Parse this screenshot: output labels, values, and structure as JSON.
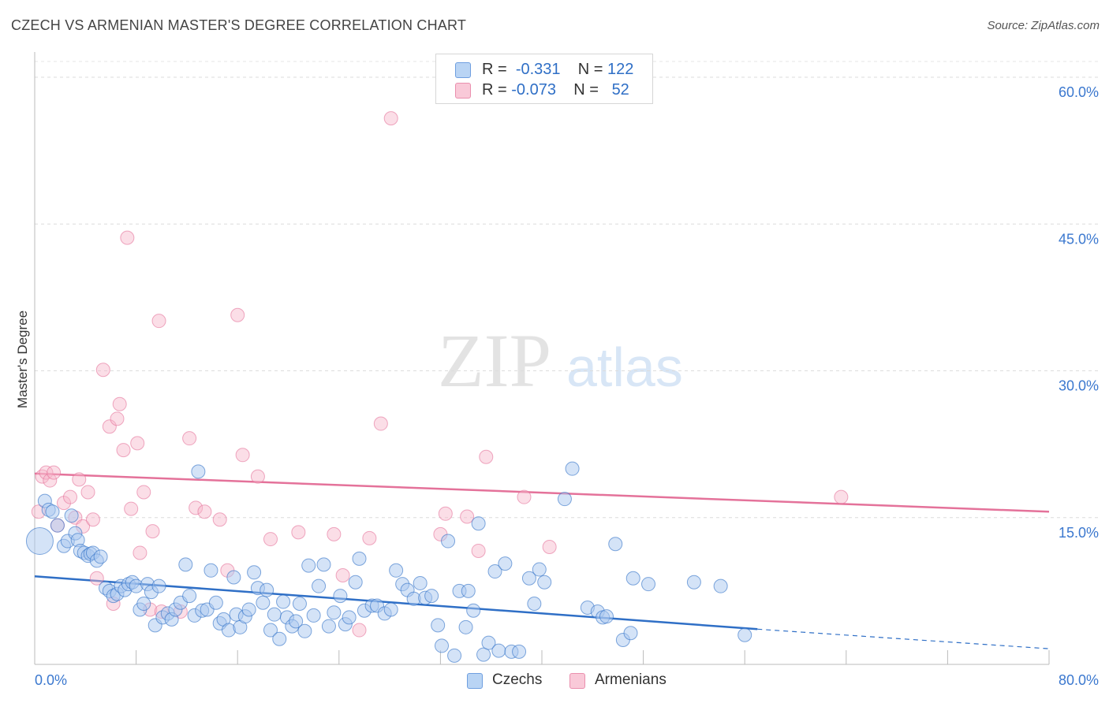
{
  "header": {
    "title": "CZECH VS ARMENIAN MASTER'S DEGREE CORRELATION CHART",
    "source": "Source: ZipAtlas.com"
  },
  "watermark": {
    "zip": "ZIP",
    "atlas": "atlas"
  },
  "legend": {
    "rows": [
      {
        "r_label": "R =",
        "r_value": "-0.331",
        "n_label": "N =",
        "n_value": "122",
        "color": "#a9c8f0"
      },
      {
        "r_label": "R =",
        "r_value": "-0.073",
        "n_label": "N =",
        "n_value": "52",
        "color": "#f6b6ca"
      }
    ]
  },
  "bottom_legend": [
    {
      "label": "Czechs",
      "color": "#a9c8f0"
    },
    {
      "label": "Armenians",
      "color": "#f6b6ca"
    }
  ],
  "chart_data": {
    "type": "scatter",
    "ylabel": "Master's Degree",
    "xlabel": "",
    "xlim": [
      0,
      80
    ],
    "ylim": [
      0,
      60
    ],
    "x_tick_labels": [
      "0.0%",
      "80.0%"
    ],
    "y_tick_labels": [
      "15.0%",
      "30.0%",
      "45.0%",
      "60.0%"
    ],
    "y_ticks": [
      15,
      30,
      45,
      60
    ],
    "grid": true,
    "colors": {
      "czechs": "#2f6fc6",
      "czechs_fill": "#a9c8f0",
      "armenians": "#e4729a",
      "armenians_fill": "#f6b6ca",
      "tick_text": "#3b78cf"
    },
    "series": [
      {
        "name": "Czechs",
        "trend": {
          "x0": 0,
          "y0": 9.0,
          "x1": 57,
          "y1": 3.6,
          "dash_to_x": 80,
          "dash_to_y": 1.6
        },
        "points": [
          [
            0.4,
            12.6
          ],
          [
            0.8,
            16.7
          ],
          [
            1.1,
            15.8
          ],
          [
            1.4,
            15.6
          ],
          [
            1.8,
            14.2
          ],
          [
            2.3,
            12.1
          ],
          [
            2.6,
            12.6
          ],
          [
            2.9,
            15.2
          ],
          [
            3.2,
            13.4
          ],
          [
            3.4,
            12.7
          ],
          [
            3.6,
            11.6
          ],
          [
            3.9,
            11.4
          ],
          [
            4.2,
            11.1
          ],
          [
            4.4,
            11.3
          ],
          [
            4.6,
            11.4
          ],
          [
            4.9,
            10.6
          ],
          [
            5.2,
            11.0
          ],
          [
            5.6,
            7.8
          ],
          [
            5.9,
            7.5
          ],
          [
            6.2,
            7.0
          ],
          [
            6.5,
            7.2
          ],
          [
            6.8,
            8.0
          ],
          [
            7.1,
            7.6
          ],
          [
            7.4,
            8.2
          ],
          [
            7.7,
            8.4
          ],
          [
            8.0,
            8.0
          ],
          [
            8.3,
            5.6
          ],
          [
            8.6,
            6.2
          ],
          [
            8.9,
            8.2
          ],
          [
            9.2,
            7.4
          ],
          [
            9.5,
            4.0
          ],
          [
            9.8,
            8.0
          ],
          [
            10.1,
            4.8
          ],
          [
            10.5,
            5.2
          ],
          [
            10.8,
            4.6
          ],
          [
            11.1,
            5.6
          ],
          [
            11.5,
            6.3
          ],
          [
            11.9,
            10.2
          ],
          [
            12.2,
            7.0
          ],
          [
            12.6,
            5.0
          ],
          [
            12.9,
            19.7
          ],
          [
            13.2,
            5.5
          ],
          [
            13.6,
            5.6
          ],
          [
            13.9,
            9.6
          ],
          [
            14.3,
            6.3
          ],
          [
            14.6,
            4.2
          ],
          [
            14.9,
            4.6
          ],
          [
            15.3,
            3.5
          ],
          [
            15.7,
            8.9
          ],
          [
            15.9,
            5.1
          ],
          [
            16.2,
            3.8
          ],
          [
            16.6,
            4.9
          ],
          [
            16.9,
            5.6
          ],
          [
            17.3,
            9.4
          ],
          [
            17.6,
            7.8
          ],
          [
            18.0,
            6.3
          ],
          [
            18.3,
            7.6
          ],
          [
            18.6,
            3.5
          ],
          [
            18.9,
            5.1
          ],
          [
            19.3,
            2.6
          ],
          [
            19.6,
            6.4
          ],
          [
            19.9,
            4.8
          ],
          [
            20.3,
            3.9
          ],
          [
            20.6,
            4.4
          ],
          [
            20.9,
            6.2
          ],
          [
            21.3,
            3.4
          ],
          [
            21.6,
            10.1
          ],
          [
            22.0,
            5.0
          ],
          [
            22.4,
            8.0
          ],
          [
            22.8,
            10.2
          ],
          [
            23.2,
            3.9
          ],
          [
            23.6,
            5.3
          ],
          [
            24.1,
            7.0
          ],
          [
            24.5,
            4.1
          ],
          [
            24.8,
            4.8
          ],
          [
            25.3,
            8.4
          ],
          [
            25.6,
            10.8
          ],
          [
            26.0,
            5.5
          ],
          [
            26.6,
            6.0
          ],
          [
            27.0,
            6.0
          ],
          [
            27.6,
            5.2
          ],
          [
            28.1,
            5.6
          ],
          [
            28.5,
            9.6
          ],
          [
            29.0,
            8.2
          ],
          [
            29.4,
            7.6
          ],
          [
            29.9,
            6.7
          ],
          [
            30.4,
            8.3
          ],
          [
            30.8,
            6.8
          ],
          [
            31.3,
            7.0
          ],
          [
            31.8,
            4.0
          ],
          [
            32.1,
            1.9
          ],
          [
            32.6,
            12.6
          ],
          [
            33.1,
            0.9
          ],
          [
            33.5,
            7.5
          ],
          [
            34.0,
            3.8
          ],
          [
            34.2,
            7.5
          ],
          [
            34.6,
            5.5
          ],
          [
            35.0,
            14.4
          ],
          [
            35.4,
            1.0
          ],
          [
            35.8,
            2.2
          ],
          [
            36.3,
            9.5
          ],
          [
            36.6,
            1.4
          ],
          [
            37.1,
            10.3
          ],
          [
            37.6,
            1.3
          ],
          [
            38.2,
            1.3
          ],
          [
            39.0,
            8.8
          ],
          [
            39.4,
            6.2
          ],
          [
            39.8,
            9.7
          ],
          [
            40.2,
            8.4
          ],
          [
            41.8,
            16.9
          ],
          [
            42.4,
            20.0
          ],
          [
            43.6,
            5.8
          ],
          [
            44.4,
            5.4
          ],
          [
            44.8,
            4.8
          ],
          [
            45.1,
            4.9
          ],
          [
            45.8,
            12.3
          ],
          [
            46.4,
            2.5
          ],
          [
            47.0,
            3.2
          ],
          [
            47.2,
            8.8
          ],
          [
            48.4,
            8.2
          ],
          [
            52.0,
            8.4
          ],
          [
            54.1,
            8.0
          ],
          [
            56.0,
            3.0
          ]
        ]
      },
      {
        "name": "Armenians",
        "trend": {
          "x0": 0,
          "y0": 19.5,
          "x1": 80,
          "y1": 15.6
        },
        "points": [
          [
            0.3,
            15.6
          ],
          [
            0.6,
            19.2
          ],
          [
            0.9,
            19.6
          ],
          [
            1.2,
            18.8
          ],
          [
            1.5,
            19.6
          ],
          [
            1.8,
            14.2
          ],
          [
            2.3,
            16.5
          ],
          [
            2.8,
            17.1
          ],
          [
            3.2,
            15.0
          ],
          [
            3.5,
            18.9
          ],
          [
            3.8,
            14.1
          ],
          [
            4.2,
            17.6
          ],
          [
            4.6,
            14.8
          ],
          [
            4.9,
            8.8
          ],
          [
            5.4,
            30.1
          ],
          [
            5.9,
            24.3
          ],
          [
            6.2,
            6.2
          ],
          [
            6.5,
            25.1
          ],
          [
            6.7,
            26.6
          ],
          [
            7.0,
            21.9
          ],
          [
            7.3,
            43.6
          ],
          [
            7.6,
            15.9
          ],
          [
            8.1,
            22.6
          ],
          [
            8.3,
            11.4
          ],
          [
            8.6,
            17.6
          ],
          [
            9.1,
            5.6
          ],
          [
            9.3,
            13.6
          ],
          [
            9.8,
            35.1
          ],
          [
            10.0,
            5.4
          ],
          [
            11.5,
            5.4
          ],
          [
            12.2,
            23.1
          ],
          [
            12.7,
            16.0
          ],
          [
            13.4,
            15.6
          ],
          [
            14.6,
            14.8
          ],
          [
            15.2,
            9.6
          ],
          [
            16.0,
            35.7
          ],
          [
            16.4,
            21.4
          ],
          [
            17.6,
            19.2
          ],
          [
            18.6,
            12.8
          ],
          [
            20.8,
            13.5
          ],
          [
            23.6,
            13.3
          ],
          [
            24.3,
            9.1
          ],
          [
            25.6,
            3.5
          ],
          [
            26.4,
            12.9
          ],
          [
            27.3,
            24.6
          ],
          [
            28.1,
            55.8
          ],
          [
            32.0,
            13.3
          ],
          [
            32.4,
            15.4
          ],
          [
            34.1,
            15.1
          ],
          [
            35.0,
            11.6
          ],
          [
            35.6,
            21.2
          ],
          [
            38.6,
            17.1
          ],
          [
            40.6,
            12.0
          ],
          [
            63.6,
            17.1
          ]
        ]
      }
    ]
  }
}
